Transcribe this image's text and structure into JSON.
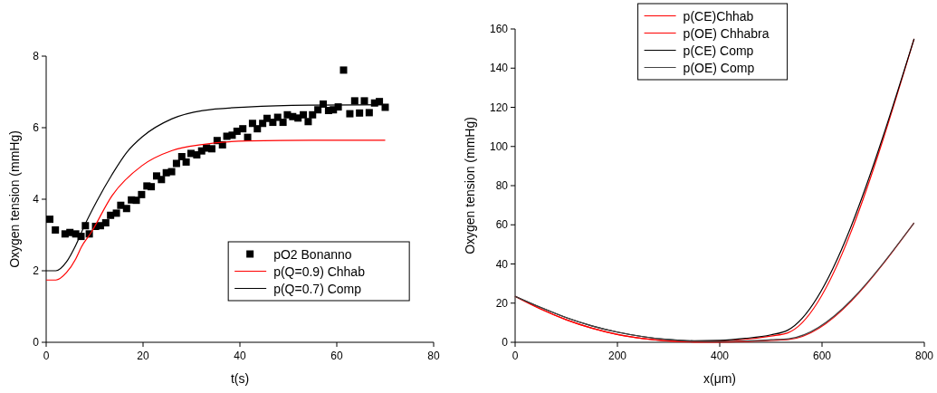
{
  "chart_data": [
    {
      "type": "line",
      "xlabel": "t(s)",
      "ylabel": "Oxygen tension (mmHg)",
      "xlim": [
        0,
        80
      ],
      "ylim": [
        0,
        8
      ],
      "xticks": [
        0,
        20,
        40,
        60,
        80
      ],
      "yticks": [
        0,
        2,
        4,
        6,
        8
      ],
      "legend": "bottom right",
      "series": [
        {
          "name": "pO2 Bonanno",
          "type": "scatter",
          "marker": "square",
          "color": "#000000",
          "x": [
            0.75,
            1.9,
            3.9,
            4.9,
            6.1,
            7.2,
            8.1,
            8.9,
            10.2,
            11.2,
            12.3,
            13.3,
            14.5,
            15.4,
            16.6,
            17.6,
            18.6,
            19.7,
            20.8,
            21.7,
            22.8,
            23.8,
            24.8,
            25.9,
            26.9,
            28.0,
            28.9,
            29.9,
            31.1,
            32.1,
            33.1,
            34.2,
            35.3,
            36.4,
            37.3,
            38.4,
            39.4,
            40.6,
            41.6,
            42.6,
            43.6,
            44.7,
            45.6,
            46.8,
            47.8,
            48.9,
            49.8,
            50.9,
            52.0,
            53.1,
            54.1,
            55.0,
            56.1,
            57.2,
            58.3,
            59.3,
            60.3,
            61.4,
            62.7,
            63.7,
            64.7,
            65.7,
            66.7,
            67.8,
            68.8,
            70.0
          ],
          "values": [
            3.44,
            3.14,
            3.03,
            3.07,
            3.03,
            2.96,
            3.26,
            3.03,
            3.24,
            3.26,
            3.34,
            3.55,
            3.61,
            3.83,
            3.74,
            3.98,
            3.97,
            4.13,
            4.37,
            4.35,
            4.65,
            4.55,
            4.74,
            4.77,
            5.0,
            5.19,
            5.04,
            5.28,
            5.24,
            5.35,
            5.43,
            5.41,
            5.64,
            5.52,
            5.76,
            5.79,
            5.9,
            5.97,
            5.73,
            6.12,
            5.97,
            6.12,
            6.26,
            6.15,
            6.29,
            6.15,
            6.36,
            6.31,
            6.27,
            6.36,
            6.17,
            6.36,
            6.5,
            6.66,
            6.48,
            6.5,
            6.58,
            7.61,
            6.39,
            6.75,
            6.41,
            6.75,
            6.42,
            6.69,
            6.73,
            6.57
          ]
        },
        {
          "name": "p(Q=0.9) Chhab",
          "type": "line",
          "color": "#ff0000",
          "x": [
            0,
            2,
            4.2,
            6.1,
            7.3,
            9.2,
            13.6,
            19.8,
            26,
            32.3,
            41.7,
            55,
            70
          ],
          "values": [
            1.74,
            1.74,
            1.95,
            2.33,
            2.67,
            3.05,
            4.1,
            4.94,
            5.36,
            5.53,
            5.63,
            5.65,
            5.65
          ]
        },
        {
          "name": "p(Q=0.7) Comp",
          "type": "line",
          "color": "#000000",
          "x": [
            0,
            2,
            4.2,
            6.1,
            7.9,
            10.4,
            13.6,
            16.7,
            19.8,
            26,
            32.3,
            41.7,
            54.2,
            70
          ],
          "values": [
            2.0,
            2.0,
            2.25,
            2.71,
            3.26,
            3.93,
            4.69,
            5.32,
            5.74,
            6.25,
            6.48,
            6.58,
            6.63,
            6.64
          ]
        }
      ]
    },
    {
      "type": "line",
      "xlabel": "x(μm)",
      "ylabel": "Oxygen tension (mmHg)",
      "xlim": [
        0,
        800
      ],
      "ylim": [
        0,
        160
      ],
      "xticks": [
        0,
        200,
        400,
        600,
        800
      ],
      "yticks": [
        0,
        20,
        40,
        60,
        80,
        100,
        120,
        140,
        160
      ],
      "legend": "top",
      "series": [
        {
          "name": "p(CE)Chhab",
          "color": "#ff0000",
          "x": [
            0,
            50,
            100,
            150,
            200,
            250,
            300,
            350,
            400,
            450,
            500,
            533,
            780
          ],
          "values": [
            23.5,
            17,
            11.5,
            7.2,
            4,
            1.9,
            0.7,
            0.3,
            0.6,
            1.5,
            3.2,
            4.8,
            155
          ]
        },
        {
          "name": "p(OE) Chhabra",
          "color": "#ff0000",
          "x": [
            0,
            50,
            100,
            150,
            200,
            250,
            300,
            350,
            400,
            450,
            500,
            535,
            780
          ],
          "values": [
            23.5,
            17,
            11.5,
            7.2,
            4,
            1.9,
            0.6,
            0.1,
            0.1,
            0.4,
            1.0,
            1.4,
            61
          ]
        },
        {
          "name": "p(CE) Comp",
          "color": "#000000",
          "x": [
            0,
            50,
            100,
            150,
            200,
            250,
            300,
            350,
            400,
            450,
            500,
            533,
            780
          ],
          "values": [
            23.5,
            17.8,
            12.6,
            8.4,
            5.2,
            2.9,
            1.4,
            0.8,
            1.0,
            2.0,
            3.8,
            6.2,
            155
          ]
        },
        {
          "name": "p(OE) Comp",
          "color": "#444444",
          "x": [
            0,
            50,
            100,
            150,
            200,
            250,
            300,
            350,
            400,
            450,
            500,
            535,
            780
          ],
          "values": [
            23.5,
            17.8,
            12.6,
            8.4,
            5.2,
            2.9,
            1.3,
            0.5,
            0.4,
            0.7,
            1.3,
            1.8,
            61
          ]
        }
      ]
    }
  ]
}
